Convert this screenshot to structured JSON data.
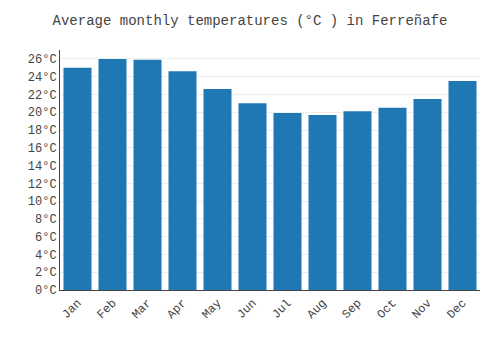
{
  "chart_data": {
    "type": "bar",
    "title": "Average monthly temperatures (°C ) in Ferreñafe",
    "categories": [
      "Jan",
      "Feb",
      "Mar",
      "Apr",
      "May",
      "Jun",
      "Jul",
      "Aug",
      "Sep",
      "Oct",
      "Nov",
      "Dec"
    ],
    "values": [
      25.0,
      26.0,
      25.9,
      24.6,
      22.6,
      21.0,
      19.9,
      19.7,
      20.1,
      20.5,
      21.5,
      23.5
    ],
    "ylim": [
      0,
      27
    ],
    "yticks": [
      {
        "value": 0,
        "label": "0°C"
      },
      {
        "value": 2,
        "label": "2°C"
      },
      {
        "value": 4,
        "label": "4°C"
      },
      {
        "value": 6,
        "label": "6°C"
      },
      {
        "value": 8,
        "label": "8°C"
      },
      {
        "value": 10,
        "label": "10°C"
      },
      {
        "value": 12,
        "label": "12°C"
      },
      {
        "value": 14,
        "label": "14°C"
      },
      {
        "value": 16,
        "label": "16°C"
      },
      {
        "value": 18,
        "label": "18°C"
      },
      {
        "value": 20,
        "label": "20°C"
      },
      {
        "value": 22,
        "label": "22°C"
      },
      {
        "value": 24,
        "label": "24°C"
      },
      {
        "value": 26,
        "label": "26°C"
      }
    ],
    "grid": true
  }
}
